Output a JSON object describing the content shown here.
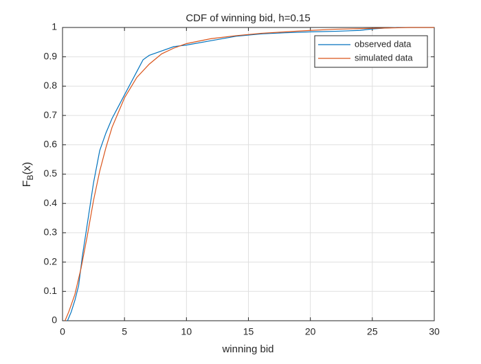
{
  "chart_data": {
    "type": "line",
    "title": "CDF of winning bid, h=0.15",
    "xlabel": "winning bid",
    "ylabel": {
      "main": "F",
      "sub": "B",
      "rest": "(x)"
    },
    "xlim": [
      0,
      30
    ],
    "xticks": [
      0,
      5,
      10,
      15,
      20,
      25,
      30
    ],
    "ylim": [
      0,
      1
    ],
    "yticks": [
      0,
      0.1,
      0.2,
      0.3,
      0.4,
      0.5,
      0.6,
      0.7,
      0.8,
      0.9,
      1
    ],
    "grid": true,
    "legend": "northeast",
    "series": [
      {
        "name": "observed data",
        "color": "#0072BD",
        "x": [
          0.4,
          0.5,
          0.7,
          1,
          1.3,
          1.6,
          2,
          2.5,
          3,
          3.5,
          4,
          4.5,
          5,
          5.5,
          6,
          6.5,
          7,
          8,
          9,
          10,
          12,
          14,
          16,
          18,
          20,
          22,
          24,
          25,
          26,
          27,
          30
        ],
        "values": [
          0,
          0.01,
          0.03,
          0.07,
          0.12,
          0.22,
          0.33,
          0.47,
          0.58,
          0.64,
          0.69,
          0.73,
          0.77,
          0.81,
          0.85,
          0.89,
          0.905,
          0.92,
          0.935,
          0.94,
          0.955,
          0.97,
          0.978,
          0.982,
          0.985,
          0.987,
          0.99,
          0.995,
          0.998,
          1,
          1
        ]
      },
      {
        "name": "simulated data",
        "color": "#D95319",
        "x": [
          0.2,
          0.5,
          1,
          1.5,
          2,
          2.5,
          3,
          3.5,
          4,
          4.5,
          5,
          6,
          7,
          8,
          9,
          10,
          12,
          14,
          16,
          18,
          20,
          22,
          25,
          28,
          30
        ],
        "values": [
          0,
          0.03,
          0.09,
          0.18,
          0.29,
          0.41,
          0.51,
          0.59,
          0.66,
          0.71,
          0.76,
          0.83,
          0.875,
          0.91,
          0.93,
          0.945,
          0.962,
          0.972,
          0.98,
          0.985,
          0.99,
          0.994,
          0.997,
          1,
          1
        ]
      }
    ]
  }
}
